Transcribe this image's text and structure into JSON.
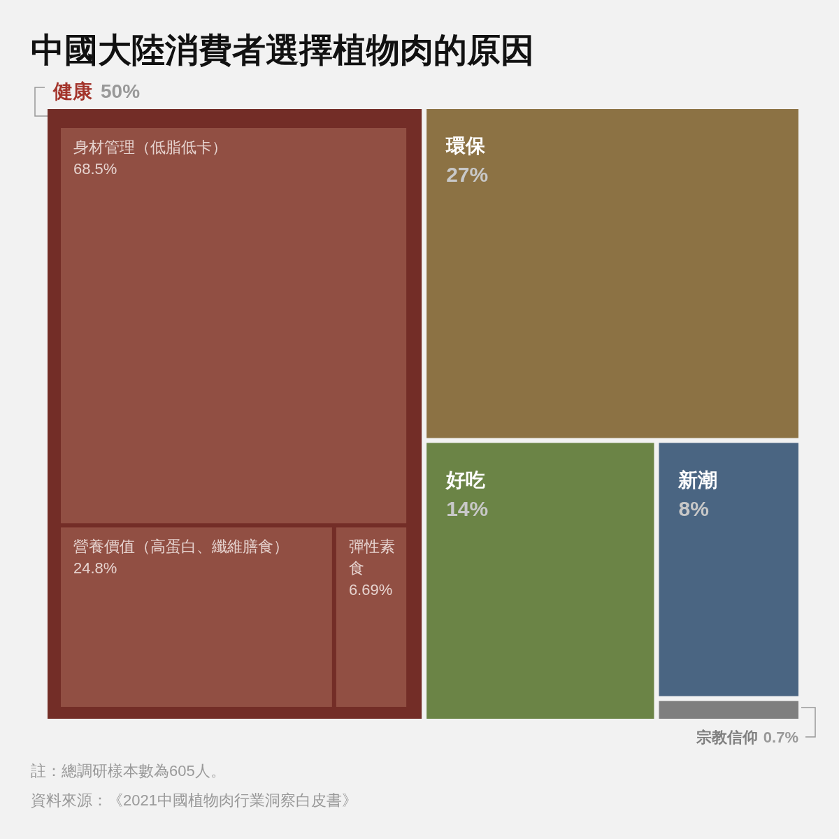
{
  "chart_data": [
    {
      "type": "other",
      "title": "中國大陸消費者選擇植物肉的原因",
      "categories": [
        "健康",
        "環保",
        "好吃",
        "新潮",
        "宗教信仰"
      ],
      "values": [
        50,
        27,
        14,
        8,
        0.7
      ],
      "value_labels": [
        "50%",
        "27%",
        "14%",
        "8%",
        "0.7%"
      ],
      "colors": [
        "#732d27",
        "#8c7244",
        "#6b8446",
        "#4a6582",
        "#7f7f7f"
      ],
      "annotations": [
        "註：總調研樣本數為605人。",
        "資料來源：《2021中國植物肉行業洞察白皮書》"
      ]
    },
    {
      "type": "other",
      "categories": [
        "身材管理（低脂低卡）",
        "營養價值（高蛋白、纖維膳食）",
        "彈性素食"
      ],
      "values": [
        68.5,
        24.8,
        6.69
      ],
      "value_labels": [
        "68.5%",
        "24.8%",
        "6.69%"
      ],
      "colors": [
        "#914f43",
        "#914f43",
        "#914f43"
      ]
    }
  ]
}
